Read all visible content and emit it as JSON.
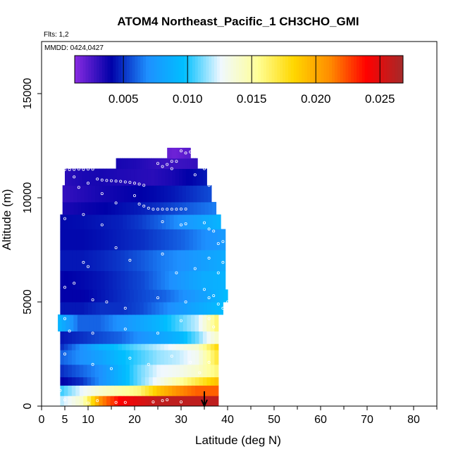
{
  "chart_data": {
    "type": "heatmap",
    "title": "ATOM4 Northeast_Pacific_1 CH3CHO_GMI",
    "flights_note": "Flts: 1,2",
    "date_note": "MMDD: 0424,0427",
    "xlabel": "Latitude (deg N)",
    "ylabel": "Altitude (m)",
    "xlim": [
      0,
      85
    ],
    "ylim": [
      0,
      17500
    ],
    "x_ticks": [
      0,
      5,
      10,
      20,
      30,
      40,
      50,
      60,
      70,
      80
    ],
    "x_tick_labels": [
      "0",
      "5",
      "10",
      "20",
      "30",
      "40",
      "50",
      "60",
      "70",
      "80"
    ],
    "y_ticks": [
      0,
      5000,
      10000,
      15000
    ],
    "y_tick_labels": [
      "0",
      "5000",
      "10000",
      "15000"
    ],
    "colorbar": {
      "min": 0.0012,
      "max": 0.0268,
      "ticks": [
        0.005,
        0.01,
        0.015,
        0.02,
        0.025
      ],
      "tick_labels": [
        "0.005",
        "0.010",
        "0.015",
        "0.020",
        "0.025"
      ],
      "colors": [
        "#8a2be2",
        "#0000a8",
        "#1e90ff",
        "#00bfff",
        "#f0f8ff",
        "#ffff99",
        "#ffd700",
        "#ff8c00",
        "#ff0000",
        "#a52a2a"
      ]
    },
    "arrow_latitude": 35,
    "layers": [
      {
        "alt_bottom": 0,
        "alt_top": 500,
        "lat_min": 4,
        "lat_max": 38,
        "values": [
          0.012,
          0.014,
          0.021,
          0.024,
          0.025,
          0.026,
          0.026,
          0.026,
          0.026
        ]
      },
      {
        "alt_bottom": 500,
        "alt_top": 1000,
        "lat_min": 4,
        "lat_max": 38,
        "values": [
          0.0105,
          0.0125,
          0.014,
          0.015,
          0.016,
          0.019,
          0.021,
          0.022,
          0.022
        ]
      },
      {
        "alt_bottom": 1000,
        "alt_top": 1400,
        "lat_min": 4,
        "lat_max": 38,
        "values": [
          0.004,
          0.005,
          0.007,
          0.009,
          0.011,
          0.013,
          0.015,
          0.017,
          0.019
        ]
      },
      {
        "alt_bottom": 1400,
        "alt_top": 2000,
        "lat_min": 4,
        "lat_max": 38,
        "values": [
          0.005,
          0.006,
          0.007,
          0.009,
          0.011,
          0.0125,
          0.013,
          0.014,
          0.016
        ]
      },
      {
        "alt_bottom": 2000,
        "alt_top": 2700,
        "lat_min": 4,
        "lat_max": 38,
        "values": [
          0.006,
          0.007,
          0.008,
          0.0095,
          0.0105,
          0.0115,
          0.012,
          0.013,
          0.017
        ]
      },
      {
        "alt_bottom": 2700,
        "alt_top": 3000,
        "lat_min": 4,
        "lat_max": 38,
        "values": [
          0.005,
          0.007,
          0.009,
          0.01,
          0.011,
          0.012,
          0.013,
          0.014,
          0.018
        ]
      },
      {
        "alt_bottom": 3000,
        "alt_top": 3600,
        "lat_min": 4,
        "lat_max": 38,
        "values": [
          0.0045,
          0.005,
          0.0055,
          0.006,
          0.007,
          0.008,
          0.009,
          0.011,
          0.014
        ]
      },
      {
        "alt_bottom": 3600,
        "alt_top": 4400,
        "lat_min": 3.5,
        "lat_max": 38,
        "values": [
          0.009,
          0.006,
          0.006,
          0.007,
          0.008,
          0.009,
          0.0105,
          0.012,
          0.016
        ]
      },
      {
        "alt_bottom": 4400,
        "alt_top": 5000,
        "lat_min": 4,
        "lat_max": 39,
        "values": [
          0.0045,
          0.0045,
          0.005,
          0.005,
          0.0055,
          0.0065,
          0.0075,
          0.0085,
          0.0095
        ]
      },
      {
        "alt_bottom": 5000,
        "alt_top": 5600,
        "lat_min": 4,
        "lat_max": 40,
        "values": [
          0.004,
          0.004,
          0.0045,
          0.005,
          0.0055,
          0.006,
          0.007,
          0.008,
          0.0095
        ]
      },
      {
        "alt_bottom": 5600,
        "alt_top": 6500,
        "lat_min": 4,
        "lat_max": 39.5,
        "values": [
          0.004,
          0.0042,
          0.0045,
          0.005,
          0.0055,
          0.0065,
          0.0075,
          0.0085,
          0.009
        ]
      },
      {
        "alt_bottom": 6500,
        "alt_top": 7500,
        "lat_min": 4,
        "lat_max": 39.5,
        "values": [
          0.0045,
          0.0045,
          0.0048,
          0.0052,
          0.0058,
          0.0065,
          0.007,
          0.0078,
          0.0085
        ]
      },
      {
        "alt_bottom": 7500,
        "alt_top": 8500,
        "lat_min": 4,
        "lat_max": 39.5,
        "values": [
          0.0042,
          0.0042,
          0.0044,
          0.0047,
          0.005,
          0.0055,
          0.006,
          0.0068,
          0.0075
        ]
      },
      {
        "alt_bottom": 8500,
        "alt_top": 9200,
        "lat_min": 4,
        "lat_max": 38.5,
        "values": [
          0.0042,
          0.0043,
          0.0045,
          0.0047,
          0.0052,
          0.006,
          0.007,
          0.008,
          0.009
        ]
      },
      {
        "alt_bottom": 9200,
        "alt_top": 9800,
        "lat_min": 4.5,
        "lat_max": 37.5,
        "values": [
          0.0035,
          0.0038,
          0.004,
          0.0043,
          0.0046,
          0.005,
          0.0055,
          0.006,
          0.0065
        ]
      },
      {
        "alt_bottom": 9800,
        "alt_top": 10600,
        "lat_min": 4.5,
        "lat_max": 36.5,
        "values": [
          0.003,
          0.0033,
          0.0036,
          0.0038,
          0.004,
          0.0042,
          0.0045,
          0.005,
          0.0055
        ]
      },
      {
        "alt_bottom": 10600,
        "alt_top": 11400,
        "lat_min": 5,
        "lat_max": 35.5,
        "values": [
          0.0032,
          0.0035,
          0.0036,
          0.0034,
          0.0033,
          0.0032,
          0.0035,
          0.004,
          0.0045
        ]
      },
      {
        "alt_bottom": 11400,
        "alt_top": 11900,
        "lat_min": 16,
        "lat_max": 33.5,
        "values": [
          0.0036,
          0.0035,
          0.0034,
          0.0032,
          0.003,
          0.0028,
          0.0028,
          0.0029,
          0.003
        ]
      },
      {
        "alt_bottom": 11900,
        "alt_top": 12400,
        "lat_min": 27,
        "lat_max": 32,
        "values": [
          0.002,
          0.0019,
          0.0018,
          0.0018,
          0.0019,
          0.002,
          0.0021,
          0.0022,
          0.0022
        ]
      }
    ],
    "points": [
      [
        5,
        11350
      ],
      [
        6,
        11350
      ],
      [
        7,
        11360
      ],
      [
        8,
        11380
      ],
      [
        9,
        11360
      ],
      [
        10,
        11380
      ],
      [
        11,
        11370
      ],
      [
        12,
        10900
      ],
      [
        13,
        10850
      ],
      [
        14,
        10830
      ],
      [
        15,
        10820
      ],
      [
        16,
        10800
      ],
      [
        17,
        10790
      ],
      [
        18,
        10760
      ],
      [
        19,
        10740
      ],
      [
        20,
        10700
      ],
      [
        21,
        10660
      ],
      [
        22,
        10600
      ],
      [
        10,
        10700
      ],
      [
        20,
        10100
      ],
      [
        21,
        9700
      ],
      [
        22,
        9600
      ],
      [
        23,
        9500
      ],
      [
        24,
        9450
      ],
      [
        25,
        9450
      ],
      [
        26,
        9450
      ],
      [
        27,
        9450
      ],
      [
        28,
        9450
      ],
      [
        29,
        9450
      ],
      [
        30,
        9460
      ],
      [
        31,
        9460
      ],
      [
        16,
        9750
      ],
      [
        5,
        9000
      ],
      [
        13,
        8700
      ],
      [
        9,
        9200
      ],
      [
        26,
        8850
      ],
      [
        30,
        8700
      ],
      [
        31,
        8750
      ],
      [
        35,
        8800
      ],
      [
        36,
        8500
      ],
      [
        37,
        8400
      ],
      [
        38,
        7800
      ],
      [
        39,
        7900
      ],
      [
        9,
        6900
      ],
      [
        10,
        6700
      ],
      [
        16,
        7600
      ],
      [
        19,
        7000
      ],
      [
        26,
        7300
      ],
      [
        29,
        6400
      ],
      [
        33,
        6600
      ],
      [
        36,
        7100
      ],
      [
        38,
        6400
      ],
      [
        39,
        6900
      ],
      [
        7,
        5900
      ],
      [
        5,
        5700
      ],
      [
        11,
        5100
      ],
      [
        14,
        5000
      ],
      [
        18,
        4700
      ],
      [
        25,
        5200
      ],
      [
        31,
        5000
      ],
      [
        35,
        5600
      ],
      [
        36,
        5200
      ],
      [
        37,
        5300
      ],
      [
        38,
        4900
      ],
      [
        39,
        4700
      ],
      [
        40,
        5000
      ],
      [
        5,
        4200
      ],
      [
        6,
        3600
      ],
      [
        11,
        3500
      ],
      [
        18,
        3700
      ],
      [
        25,
        3500
      ],
      [
        30,
        4100
      ],
      [
        36,
        4200
      ],
      [
        37,
        3800
      ],
      [
        5,
        2500
      ],
      [
        11,
        2000
      ],
      [
        15,
        1800
      ],
      [
        19,
        2300
      ],
      [
        23,
        2000
      ],
      [
        28,
        2400
      ],
      [
        32,
        2100
      ],
      [
        34,
        1600
      ],
      [
        36,
        2100
      ],
      [
        4,
        750
      ],
      [
        5,
        300
      ],
      [
        10,
        150
      ],
      [
        12,
        260
      ],
      [
        16,
        180
      ],
      [
        18,
        180
      ],
      [
        24,
        200
      ],
      [
        26,
        260
      ],
      [
        27,
        300
      ],
      [
        30,
        200
      ],
      [
        7,
        11000
      ],
      [
        8,
        10500
      ],
      [
        13,
        10200
      ],
      [
        25,
        11650
      ],
      [
        26,
        11500
      ],
      [
        27,
        11600
      ],
      [
        28,
        11750
      ],
      [
        29,
        11750
      ],
      [
        30,
        12250
      ],
      [
        31,
        12150
      ],
      [
        32,
        12200
      ],
      [
        33,
        12250
      ],
      [
        34,
        12250
      ],
      [
        35,
        12250
      ],
      [
        28,
        11400
      ],
      [
        33,
        11100
      ],
      [
        35,
        11400
      ],
      [
        36,
        10600
      ],
      [
        37,
        10100
      ]
    ]
  }
}
